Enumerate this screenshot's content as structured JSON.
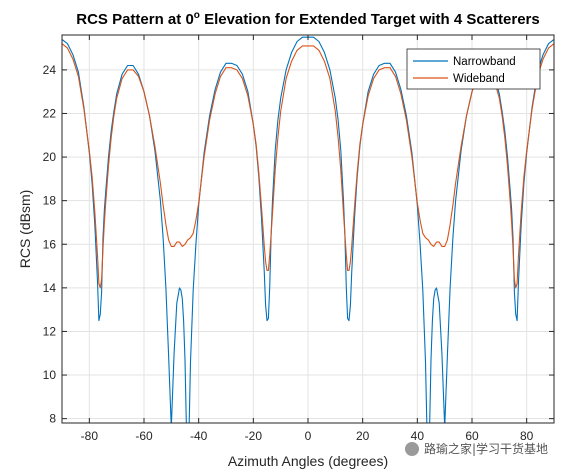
{
  "chart_data": {
    "type": "line",
    "title_main": "RCS Pattern at 0",
    "title_sup": "o",
    "title_rest": " Elevation for Extended Target with 4 Scatterers",
    "xlabel": "Azimuth Angles (degrees)",
    "ylabel": "RCS (dBsm)",
    "xlim": [
      -90,
      90
    ],
    "ylim": [
      7.8,
      25.6
    ],
    "xticks": [
      -80,
      -60,
      -40,
      -20,
      0,
      20,
      40,
      60,
      80
    ],
    "yticks": [
      8,
      10,
      12,
      14,
      16,
      18,
      20,
      22,
      24
    ],
    "grid": true,
    "legend_position": "top-right",
    "series": [
      {
        "name": "Narrowband",
        "color": "#0072BD",
        "x": [
          -90,
          -88,
          -86,
          -84,
          -82,
          -80,
          -79,
          -78,
          -77,
          -76.5,
          -76,
          -75.5,
          -75,
          -74.5,
          -74,
          -73,
          -72,
          -71,
          -70,
          -68,
          -66,
          -64,
          -62,
          -60,
          -58,
          -56,
          -54,
          -53,
          -52,
          -51,
          -50,
          -49,
          -48,
          -47,
          -46.5,
          -46,
          -45.5,
          -45,
          -44.5,
          -44,
          -43.5,
          -43,
          -42,
          -41,
          -40,
          -38,
          -36,
          -34,
          -32,
          -30,
          -28,
          -26,
          -24,
          -22,
          -20,
          -19,
          -18,
          -17,
          -16,
          -15.5,
          -15,
          -14.5,
          -14,
          -13.5,
          -13,
          -12,
          -11,
          -10,
          -8,
          -6,
          -4,
          -2,
          0,
          2,
          4,
          6,
          8,
          10,
          11,
          12,
          13,
          13.5,
          14,
          14.5,
          15,
          15.5,
          16,
          17,
          18,
          19,
          20,
          22,
          24,
          26,
          28,
          30,
          32,
          34,
          36,
          38,
          40,
          41,
          42,
          43,
          43.5,
          44,
          44.5,
          45,
          45.5,
          46,
          46.5,
          47,
          48,
          49,
          50,
          51,
          52,
          53,
          54,
          56,
          58,
          60,
          62,
          64,
          66,
          68,
          70,
          71,
          72,
          73,
          74,
          74.5,
          75,
          75.5,
          76,
          76.5,
          77,
          78,
          79,
          80,
          82,
          84,
          86,
          88,
          90
        ],
        "y": [
          25.4,
          25.2,
          24.7,
          23.9,
          22.3,
          20.2,
          18.8,
          16.9,
          14.3,
          12.5,
          12.8,
          13.8,
          16.3,
          17.6,
          18.4,
          20.0,
          21.2,
          22.1,
          22.9,
          23.8,
          24.2,
          24.2,
          23.8,
          23.0,
          21.9,
          20.3,
          18.0,
          16.3,
          14.0,
          10.9,
          7.6,
          11.0,
          13.3,
          14.0,
          13.9,
          13.5,
          12.5,
          10.7,
          7.6,
          7.6,
          7.6,
          10.6,
          13.9,
          16.0,
          17.8,
          20.2,
          21.9,
          23.1,
          23.9,
          24.3,
          24.3,
          24.2,
          23.8,
          23.0,
          21.5,
          20.5,
          19.1,
          17.2,
          14.7,
          13.2,
          12.5,
          12.6,
          14.0,
          16.4,
          18.0,
          20.3,
          21.7,
          22.7,
          24.0,
          24.8,
          25.3,
          25.5,
          25.5,
          25.5,
          25.3,
          24.8,
          24.0,
          22.7,
          21.7,
          20.3,
          18.0,
          16.4,
          14.0,
          12.6,
          12.5,
          13.2,
          14.7,
          17.2,
          19.1,
          20.5,
          21.5,
          23.0,
          23.8,
          24.2,
          24.3,
          24.3,
          23.9,
          23.1,
          21.9,
          20.2,
          17.8,
          16.0,
          13.9,
          10.6,
          7.6,
          7.6,
          7.6,
          10.7,
          12.5,
          13.5,
          13.9,
          14.0,
          13.3,
          11.0,
          7.6,
          10.9,
          14.0,
          16.3,
          18.0,
          20.3,
          21.9,
          23.0,
          23.8,
          24.2,
          24.2,
          23.8,
          22.9,
          22.1,
          21.2,
          20.0,
          18.4,
          17.6,
          16.3,
          13.8,
          12.8,
          12.5,
          14.3,
          16.9,
          18.8,
          20.2,
          22.3,
          23.9,
          24.7,
          25.2,
          25.4
        ]
      },
      {
        "name": "Wideband",
        "color": "#D95319",
        "x": [
          -90,
          -88,
          -86,
          -84,
          -82,
          -80,
          -79,
          -78,
          -77,
          -76.5,
          -76,
          -75.5,
          -75,
          -74.5,
          -74,
          -73,
          -72,
          -71,
          -70,
          -68,
          -66,
          -64,
          -62,
          -60,
          -58,
          -56,
          -54,
          -53,
          -52,
          -51,
          -50,
          -49,
          -48,
          -47,
          -46,
          -45,
          -44,
          -43,
          -42,
          -41,
          -40,
          -38,
          -36,
          -34,
          -32,
          -30,
          -28,
          -26,
          -24,
          -22,
          -20,
          -19,
          -18,
          -17,
          -16,
          -15.5,
          -15,
          -14.5,
          -14,
          -13,
          -12,
          -11,
          -10,
          -8,
          -6,
          -4,
          -2,
          0,
          2,
          4,
          6,
          8,
          10,
          11,
          12,
          13,
          14,
          14.5,
          15,
          15.5,
          16,
          17,
          18,
          19,
          20,
          22,
          24,
          26,
          28,
          30,
          32,
          34,
          36,
          38,
          40,
          41,
          42,
          43,
          44,
          45,
          46,
          47,
          48,
          49,
          50,
          51,
          52,
          53,
          54,
          56,
          58,
          60,
          62,
          64,
          66,
          68,
          70,
          71,
          72,
          73,
          74,
          74.5,
          75,
          75.5,
          76,
          76.5,
          77,
          78,
          79,
          80,
          82,
          84,
          86,
          88,
          90
        ],
        "y": [
          25.2,
          25.0,
          24.5,
          23.7,
          22.2,
          20.3,
          19.1,
          17.5,
          15.5,
          14.2,
          14.0,
          14.4,
          15.8,
          17.0,
          17.9,
          19.6,
          20.9,
          21.9,
          22.7,
          23.6,
          24.0,
          24.0,
          23.7,
          23.0,
          21.9,
          20.5,
          18.8,
          17.8,
          16.9,
          16.2,
          15.9,
          15.9,
          16.1,
          16.1,
          15.9,
          16.0,
          16.2,
          16.3,
          16.5,
          17.1,
          17.9,
          20.0,
          21.7,
          22.9,
          23.7,
          24.1,
          24.1,
          24.0,
          23.6,
          22.8,
          21.5,
          20.6,
          19.3,
          17.7,
          15.9,
          15.2,
          14.8,
          14.8,
          15.5,
          17.4,
          19.4,
          20.9,
          22.1,
          23.6,
          24.4,
          24.9,
          25.1,
          25.1,
          25.1,
          24.9,
          24.4,
          23.6,
          22.1,
          20.9,
          19.4,
          17.4,
          15.5,
          14.8,
          14.8,
          15.2,
          15.9,
          17.7,
          19.3,
          20.6,
          21.5,
          22.8,
          23.6,
          24.0,
          24.1,
          24.1,
          23.7,
          22.9,
          21.7,
          20.0,
          17.9,
          17.1,
          16.5,
          16.3,
          16.2,
          16.0,
          15.9,
          16.1,
          16.1,
          15.9,
          15.9,
          16.2,
          16.9,
          17.8,
          18.8,
          20.5,
          21.9,
          23.0,
          23.7,
          24.0,
          24.0,
          23.6,
          22.7,
          21.9,
          20.9,
          19.6,
          17.9,
          17.0,
          15.8,
          14.4,
          14.0,
          14.2,
          15.5,
          17.5,
          19.1,
          20.3,
          22.2,
          23.7,
          24.5,
          25.0,
          25.2
        ]
      }
    ]
  },
  "watermark": "路瑜之家|学习干货基地"
}
